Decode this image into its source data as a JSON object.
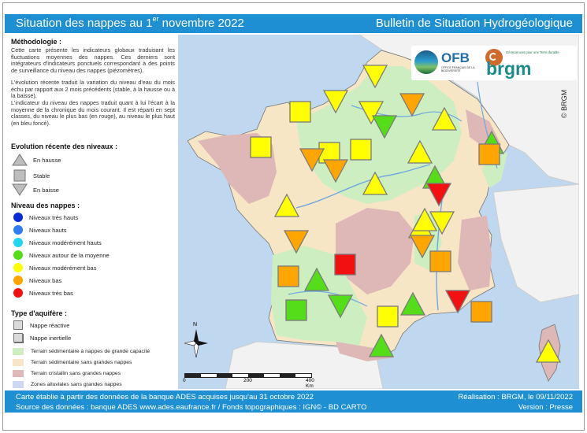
{
  "header": {
    "title_pre": "Situation des nappes au 1",
    "title_sup": "er",
    "title_post": " novembre 2022",
    "bulletin": "Bulletin de Situation Hydrogéologique"
  },
  "methodology": {
    "heading": "Méthodologie :",
    "p1": "Cette carte présente les indicateurs globaux traduisant les fluctuations moyennes des nappes. Ces derniers sont intégrateurs d'indicateurs ponctuels correspondant à des points de surveillance du niveau des nappes (piézomètres).",
    "p2": "L'évolution récente traduit la variation du niveau d'eau du mois échu par rapport aux 2 mois précédents (stable, à la hausse ou à la baisse).",
    "p3": "L'indicateur du niveau des nappes traduit quant à lui l'écart à la moyenne de la chronique du mois courant. Il est réparti en sept classes, du niveau le plus bas (en rouge), au niveau le plus haut (en bleu foncé)."
  },
  "legend_evolution": {
    "heading": "Evolution récente des niveaux :",
    "items": [
      "En hausse",
      "Stable",
      "En baisse"
    ]
  },
  "legend_levels": {
    "heading": "Niveau des nappes :",
    "items": [
      {
        "label": "Niveaux très hauts",
        "color": "#0a2bd6"
      },
      {
        "label": "Niveaux hauts",
        "color": "#2f7df0"
      },
      {
        "label": "Niveaux modérément hauts",
        "color": "#1fd8f0"
      },
      {
        "label": "Niveaux autour de la moyenne",
        "color": "#55dd1a"
      },
      {
        "label": "Niveaux modérément bas",
        "color": "#ffff00"
      },
      {
        "label": "Niveaux bas",
        "color": "#ffa500"
      },
      {
        "label": "Niveaux très bas",
        "color": "#f21010"
      }
    ]
  },
  "legend_aquifer": {
    "heading": "Type d'aquifère :",
    "items": [
      "Nappe réactive",
      "Nappe inertielle"
    ],
    "zones": [
      {
        "label": "Terrain sédimentaire à nappes de grande capacité",
        "color": "#cdeec0"
      },
      {
        "label": "Terrain sédimentaire sans grandes nappes",
        "color": "#f6e6c6"
      },
      {
        "label": "Terrain cristallin sans grandes nappes",
        "color": "#deb7b7"
      },
      {
        "label": "Zones alluviales sans grandes nappes",
        "color": "#cdd8f4"
      }
    ]
  },
  "logos": {
    "ofb": "OFB",
    "ofb_sub": "OFFICE FRANÇAIS DE LA BIODIVERSITÉ",
    "brgm": "brgm",
    "brgm_tag": "Géosciences pour une Terre durable",
    "copyright": "© BRGM"
  },
  "map": {
    "north": "N",
    "scale_labels": [
      "0",
      "200",
      "400 Km"
    ]
  },
  "markers": [
    {
      "id": "north-1",
      "shape": "tri-down",
      "color": "yellow"
    },
    {
      "id": "normandie-w",
      "shape": "square",
      "color": "yellow"
    },
    {
      "id": "normandie-c",
      "shape": "tri-down",
      "color": "yellow"
    },
    {
      "id": "seine-1",
      "shape": "tri-down",
      "color": "yellow"
    },
    {
      "id": "seine-2",
      "shape": "tri-down",
      "color": "green"
    },
    {
      "id": "champagne-1",
      "shape": "tri-down",
      "color": "orange"
    },
    {
      "id": "champagne-2",
      "shape": "tri-up",
      "color": "yellow"
    },
    {
      "id": "lorraine",
      "shape": "tri-up",
      "color": "green"
    },
    {
      "id": "bretagne",
      "shape": "square",
      "color": "yellow"
    },
    {
      "id": "maine",
      "shape": "square",
      "color": "yellow"
    },
    {
      "id": "beauce",
      "shape": "square",
      "color": "yellow"
    },
    {
      "id": "centre-w",
      "shape": "tri-down",
      "color": "orange"
    },
    {
      "id": "centre-c",
      "shape": "tri-down",
      "color": "orange"
    },
    {
      "id": "burgundy-w",
      "shape": "tri-up",
      "color": "yellow"
    },
    {
      "id": "burgundy-e",
      "shape": "tri-up",
      "color": "yellow"
    },
    {
      "id": "alsace",
      "shape": "square",
      "color": "orange"
    },
    {
      "id": "jura-1",
      "shape": "tri-up",
      "color": "green"
    },
    {
      "id": "jura-2",
      "shape": "tri-down",
      "color": "red"
    },
    {
      "id": "vendee",
      "shape": "tri-up",
      "color": "yellow"
    },
    {
      "id": "loire",
      "shape": "tri-up",
      "color": "yellow"
    },
    {
      "id": "rhone-1",
      "shape": "tri-up",
      "color": "yellow"
    },
    {
      "id": "rhone-2",
      "shape": "tri-down",
      "color": "yellow"
    },
    {
      "id": "charente",
      "shape": "tri-down",
      "color": "orange"
    },
    {
      "id": "alps-w",
      "shape": "tri-down",
      "color": "orange"
    },
    {
      "id": "limousin",
      "shape": "square",
      "color": "red"
    },
    {
      "id": "rhone-sq",
      "shape": "square",
      "color": "orange"
    },
    {
      "id": "aquitaine-sq",
      "shape": "square",
      "color": "orange"
    },
    {
      "id": "aquitaine-tri",
      "shape": "tri-up",
      "color": "green"
    },
    {
      "id": "garonne-sq",
      "shape": "square",
      "color": "green"
    },
    {
      "id": "garonne-tri",
      "shape": "tri-down",
      "color": "green"
    },
    {
      "id": "provence-w",
      "shape": "tri-up",
      "color": "green"
    },
    {
      "id": "provence-e",
      "shape": "tri-down",
      "color": "red"
    },
    {
      "id": "nice",
      "shape": "square",
      "color": "orange"
    },
    {
      "id": "languedoc",
      "shape": "square",
      "color": "yellow"
    },
    {
      "id": "pyrenees",
      "shape": "tri-up",
      "color": "green"
    },
    {
      "id": "corse",
      "shape": "tri-up",
      "color": "yellow"
    }
  ],
  "footer": {
    "line1": "Carte établie à partir des données de la banque ADES acquises jusqu'au 31 octobre 2022",
    "line2": "Source des données : banque ADES www.ades.eaufrance.fr / Fonds topographiques : IGN© - BD CARTO",
    "right1": "Réalisation : BRGM, le 09/11/2022",
    "right2": "Version : Presse"
  }
}
